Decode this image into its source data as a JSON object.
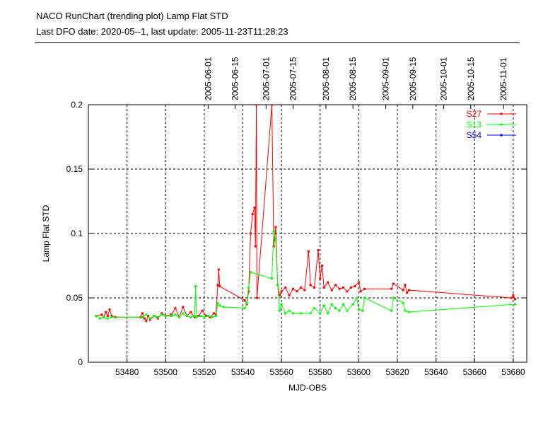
{
  "header": {
    "title": "NACO RunChart (trending plot) Lamp Flat STD",
    "subtitle": "Last DFO date: 2020-05--1, last update: 2005-11-23T11:28:23"
  },
  "chart_data": {
    "type": "line",
    "title": "NACO RunChart (trending plot) Lamp Flat STD",
    "xlabel": "MJD-OBS",
    "ylabel": "Lamp Flat STD",
    "xlim": [
      53460,
      53687
    ],
    "ylim": [
      0,
      0.2
    ],
    "grid": true,
    "legend_position": "top-right",
    "x_ticks": [
      53480,
      53500,
      53520,
      53540,
      53560,
      53580,
      53600,
      53620,
      53640,
      53660,
      53680
    ],
    "y_ticks": [
      0,
      0.05,
      0.1,
      0.15,
      0.2
    ],
    "y_tick_labels": [
      "0",
      "0.05",
      "0.1",
      "0.15",
      "0.2"
    ],
    "top_axis": [
      {
        "label": "2005-06-01",
        "mjd": 53522
      },
      {
        "label": "2005-06-15",
        "mjd": 53536
      },
      {
        "label": "2005-07-01",
        "mjd": 53552
      },
      {
        "label": "2005-07-15",
        "mjd": 53566
      },
      {
        "label": "2005-08-01",
        "mjd": 53583
      },
      {
        "label": "2005-08-15",
        "mjd": 53597
      },
      {
        "label": "2005-09-01",
        "mjd": 53614
      },
      {
        "label": "2005-09-15",
        "mjd": 53628
      },
      {
        "label": "2005-10-01",
        "mjd": 53644
      },
      {
        "label": "2005-10-15",
        "mjd": 53658
      },
      {
        "label": "2005-11-01",
        "mjd": 53675
      }
    ],
    "series": [
      {
        "name": "S27",
        "color": "#ff0000",
        "points": [
          [
            53464,
            0.036
          ],
          [
            53467,
            0.037
          ],
          [
            53468,
            0.035
          ],
          [
            53469,
            0.039
          ],
          [
            53470,
            0.036
          ],
          [
            53471,
            0.041
          ],
          [
            53472,
            0.036
          ],
          [
            53474,
            0.035
          ],
          [
            53487,
            0.035
          ],
          [
            53488,
            0.038
          ],
          [
            53489,
            0.034
          ],
          [
            53490,
            0.032
          ],
          [
            53491,
            0.036
          ],
          [
            53492,
            0.033
          ],
          [
            53494,
            0.036
          ],
          [
            53496,
            0.034
          ],
          [
            53498,
            0.038
          ],
          [
            53500,
            0.036
          ],
          [
            53503,
            0.037
          ],
          [
            53505,
            0.042
          ],
          [
            53507,
            0.035
          ],
          [
            53509,
            0.043
          ],
          [
            53511,
            0.036
          ],
          [
            53513,
            0.039
          ],
          [
            53515,
            0.035
          ],
          [
            53517,
            0.036
          ],
          [
            53519,
            0.04
          ],
          [
            53521,
            0.036
          ],
          [
            53523,
            0.035
          ],
          [
            53525,
            0.038
          ],
          [
            53526,
            0.037
          ],
          [
            53527,
            0.06
          ],
          [
            53527.5,
            0.072
          ],
          [
            53528,
            0.059
          ],
          [
            53541,
            0.048
          ],
          [
            53542,
            0.045
          ],
          [
            53543,
            0.055
          ],
          [
            53544,
            0.1
          ],
          [
            53545,
            0.115
          ],
          [
            53546,
            0.12
          ],
          [
            53546.5,
            0.09
          ],
          [
            53547,
            0.2
          ],
          [
            53547.3,
            0.05
          ],
          [
            53555,
            0.2
          ],
          [
            53556,
            0.09
          ],
          [
            53557,
            0.105
          ],
          [
            53558,
            0.06
          ],
          [
            53559,
            0.052
          ],
          [
            53560,
            0.055
          ],
          [
            53562,
            0.058
          ],
          [
            53564,
            0.052
          ],
          [
            53566,
            0.057
          ],
          [
            53568,
            0.055
          ],
          [
            53570,
            0.058
          ],
          [
            53572,
            0.056
          ],
          [
            53574,
            0.086
          ],
          [
            53575,
            0.06
          ],
          [
            53577,
            0.058
          ],
          [
            53579,
            0.087
          ],
          [
            53580,
            0.065
          ],
          [
            53581,
            0.075
          ],
          [
            53582,
            0.058
          ],
          [
            53584,
            0.062
          ],
          [
            53586,
            0.056
          ],
          [
            53588,
            0.06
          ],
          [
            53590,
            0.057
          ],
          [
            53592,
            0.058
          ],
          [
            53594,
            0.055
          ],
          [
            53596,
            0.058
          ],
          [
            53598,
            0.059
          ],
          [
            53600,
            0.062
          ],
          [
            53601,
            0.055
          ],
          [
            53603,
            0.057
          ],
          [
            53617,
            0.057
          ],
          [
            53618,
            0.061
          ],
          [
            53623,
            0.056
          ],
          [
            53624,
            0.06
          ],
          [
            53625,
            0.054
          ],
          [
            53626,
            0.056
          ],
          [
            53679,
            0.05
          ],
          [
            53680,
            0.052
          ],
          [
            53681,
            0.049
          ]
        ]
      },
      {
        "name": "S13",
        "color": "#00ff00",
        "points": [
          [
            53464,
            0.036
          ],
          [
            53466,
            0.034
          ],
          [
            53468,
            0.035
          ],
          [
            53470,
            0.034
          ],
          [
            53472,
            0.035
          ],
          [
            53488,
            0.035
          ],
          [
            53490,
            0.037
          ],
          [
            53492,
            0.034
          ],
          [
            53494,
            0.036
          ],
          [
            53496,
            0.035
          ],
          [
            53498,
            0.037
          ],
          [
            53500,
            0.036
          ],
          [
            53503,
            0.036
          ],
          [
            53505,
            0.037
          ],
          [
            53507,
            0.035
          ],
          [
            53509,
            0.038
          ],
          [
            53511,
            0.036
          ],
          [
            53513,
            0.035
          ],
          [
            53515,
            0.036
          ],
          [
            53515.5,
            0.059
          ],
          [
            53516,
            0.035
          ],
          [
            53518,
            0.036
          ],
          [
            53520,
            0.035
          ],
          [
            53522,
            0.036
          ],
          [
            53524,
            0.035
          ],
          [
            53526,
            0.036
          ],
          [
            53527,
            0.046
          ],
          [
            53528,
            0.044
          ],
          [
            53530,
            0.043
          ],
          [
            53541,
            0.042
          ],
          [
            53542,
            0.046
          ],
          [
            53543,
            0.058
          ],
          [
            53544,
            0.07
          ],
          [
            53555,
            0.065
          ],
          [
            53556,
            0.102
          ],
          [
            53557,
            0.095
          ],
          [
            53558,
            0.06
          ],
          [
            53559,
            0.04
          ],
          [
            53560,
            0.045
          ],
          [
            53562,
            0.038
          ],
          [
            53564,
            0.04
          ],
          [
            53566,
            0.038
          ],
          [
            53570,
            0.038
          ],
          [
            53575,
            0.038
          ],
          [
            53577,
            0.042
          ],
          [
            53580,
            0.038
          ],
          [
            53582,
            0.044
          ],
          [
            53584,
            0.038
          ],
          [
            53586,
            0.045
          ],
          [
            53588,
            0.042
          ],
          [
            53590,
            0.04
          ],
          [
            53592,
            0.045
          ],
          [
            53594,
            0.04
          ],
          [
            53597,
            0.045
          ],
          [
            53599,
            0.05
          ],
          [
            53600,
            0.041
          ],
          [
            53602,
            0.04
          ],
          [
            53603,
            0.05
          ],
          [
            53617,
            0.04
          ],
          [
            53618,
            0.05
          ],
          [
            53623,
            0.046
          ],
          [
            53624,
            0.04
          ],
          [
            53626,
            0.039
          ],
          [
            53681,
            0.045
          ]
        ]
      },
      {
        "name": "S54",
        "color": "#0000ff",
        "points": []
      }
    ]
  }
}
